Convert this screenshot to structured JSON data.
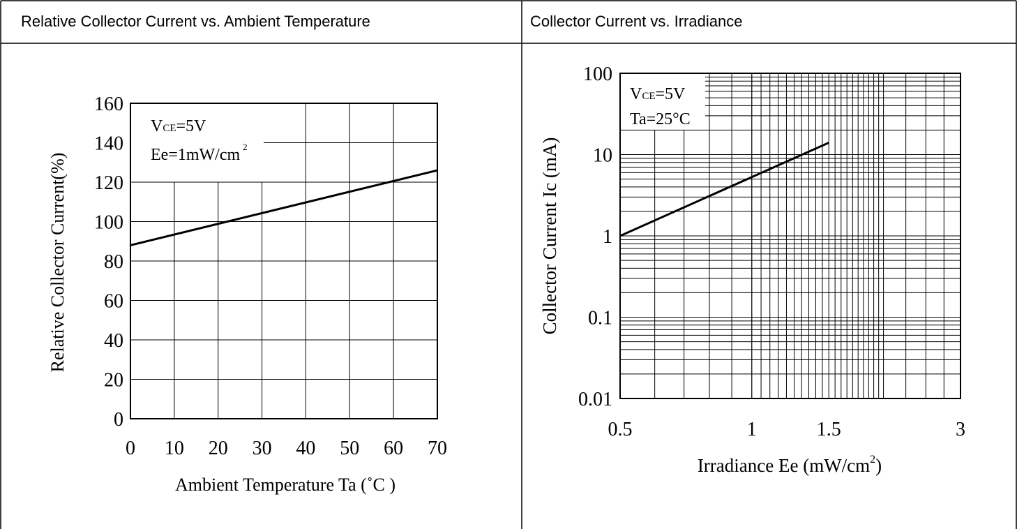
{
  "panels": [
    {
      "title": "Relative Collector Current vs. Ambient Temperature"
    },
    {
      "title": "Collector Current vs. Irradiance"
    }
  ],
  "chart_data": [
    {
      "type": "line",
      "title": "Relative Collector Current vs. Ambient Temperature",
      "xlabel": "Ambient Temperature Ta (˚C )",
      "ylabel": "Relative Collector Current(%)",
      "xlim": [
        0,
        70
      ],
      "ylim": [
        0,
        160
      ],
      "x_ticks": [
        0,
        10,
        20,
        30,
        40,
        50,
        60,
        70
      ],
      "y_ticks": [
        0,
        20,
        40,
        60,
        80,
        100,
        120,
        140,
        160
      ],
      "grid": true,
      "annotation": {
        "vce_main": "V",
        "vce_sub": "CE",
        "vce_value": "=5V",
        "ee_main": "Ee=1mW/cm",
        "ee_sup": "2"
      },
      "series": [
        {
          "x": [
            0,
            70
          ],
          "y": [
            88,
            126
          ]
        }
      ]
    },
    {
      "type": "line",
      "title": "Collector Current vs. Irradiance",
      "xlabel_main": "Irradiance Ee (mW/cm",
      "xlabel_sup": "2",
      "xlabel_end": ")",
      "ylabel": "Collector Current Ic (mA)",
      "xscale": "log",
      "yscale": "log",
      "xlim": [
        0.5,
        3
      ],
      "ylim": [
        0.01,
        100
      ],
      "x_tick_labels": [
        "0.5",
        "1",
        "1.5",
        "3"
      ],
      "y_tick_labels": [
        "0.01",
        "0.1",
        "1",
        "10",
        "100"
      ],
      "grid": true,
      "annotation": {
        "vce_main": "V",
        "vce_sub": "CE",
        "vce_value": "=5V",
        "ta": "Ta=25°C"
      },
      "series": [
        {
          "x": [
            0.5,
            1.5
          ],
          "y": [
            1,
            14
          ]
        }
      ]
    }
  ]
}
